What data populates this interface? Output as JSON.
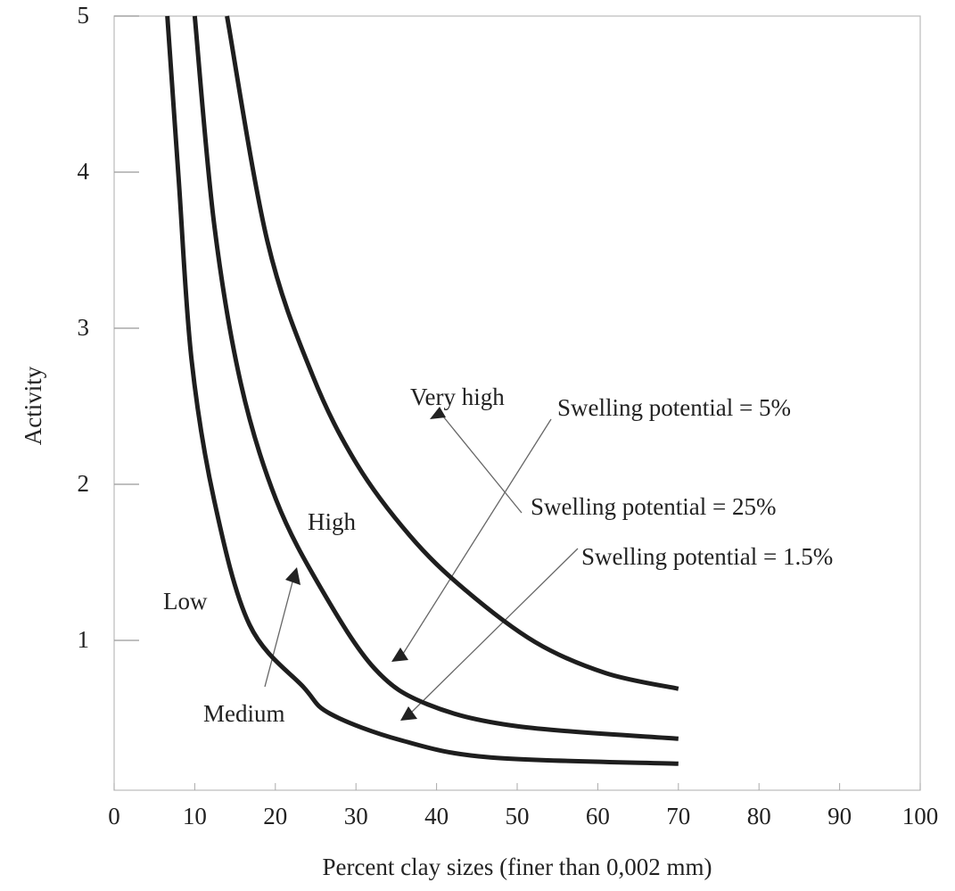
{
  "chart_data": {
    "type": "line",
    "x_label": "Percent clay sizes (finer than 0,002 mm)",
    "y_label": "Activity",
    "xlim": [
      0,
      100
    ],
    "xticks": [
      0,
      10,
      20,
      30,
      40,
      50,
      60,
      70,
      80,
      90,
      100
    ],
    "ylim": [
      0,
      5
    ],
    "yticks": [
      1,
      2,
      3,
      4,
      5
    ],
    "grid": false,
    "annotations": [
      "Very high",
      "High",
      "Low",
      "Medium"
    ],
    "series": [
      {
        "name": "Swelling potential = 1.5%",
        "color": "#1e1e1e",
        "x": [
          6.6,
          8,
          9.6,
          12.4,
          16.8,
          23.5,
          26.8,
          35.6,
          46.7,
          70
        ],
        "values": [
          5,
          3.96,
          2.8,
          1.9,
          1.1,
          0.7,
          0.53,
          0.36,
          0.25,
          0.21
        ]
      },
      {
        "name": "Swelling potential = 5%",
        "color": "#1e1e1e",
        "x": [
          10,
          12.4,
          15.7,
          20.1,
          25.7,
          32.3,
          38.9,
          50,
          70
        ],
        "values": [
          5,
          3.67,
          2.65,
          1.9,
          1.33,
          0.82,
          0.59,
          0.45,
          0.37
        ]
      },
      {
        "name": "Swelling potential = 25%",
        "color": "#1e1e1e",
        "x": [
          14,
          19,
          24.6,
          30.1,
          36.7,
          43.4,
          52.2,
          61,
          70
        ],
        "values": [
          5,
          3.56,
          2.7,
          2.13,
          1.67,
          1.33,
          0.99,
          0.79,
          0.69
        ]
      }
    ]
  }
}
